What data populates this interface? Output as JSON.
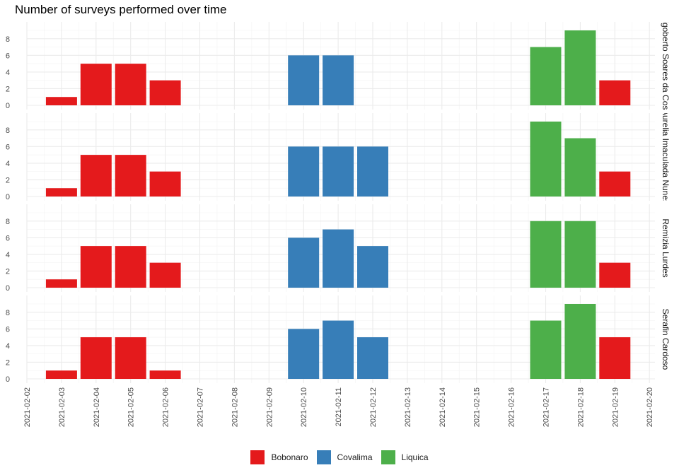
{
  "chart_data": {
    "type": "bar",
    "title": "Number of surveys performed over time",
    "x_tick_labels": [
      "2021-02-02",
      "2021-02-03",
      "2021-02-04",
      "2021-02-05",
      "2021-02-06",
      "2021-02-07",
      "2021-02-08",
      "2021-02-09",
      "2021-02-10",
      "2021-02-11",
      "2021-02-12",
      "2021-02-13",
      "2021-02-14",
      "2021-02-15",
      "2021-02-16",
      "2021-02-17",
      "2021-02-18",
      "2021-02-19",
      "2021-02-20"
    ],
    "ylim": [
      0,
      9
    ],
    "y_ticks": [
      0,
      2,
      4,
      6,
      8
    ],
    "legend": {
      "position": "bottom",
      "entries": [
        {
          "name": "Bobonaro",
          "color": "#e41a1c"
        },
        {
          "name": "Covalima",
          "color": "#377eb8"
        },
        {
          "name": "Liquica",
          "color": "#4daf4a"
        }
      ]
    },
    "panels": [
      {
        "strip": "Rigoberto Soares da Costa",
        "bars": [
          {
            "date": "2021-02-03",
            "value": 1,
            "group": "Bobonaro"
          },
          {
            "date": "2021-02-04",
            "value": 5,
            "group": "Bobonaro"
          },
          {
            "date": "2021-02-05",
            "value": 5,
            "group": "Bobonaro"
          },
          {
            "date": "2021-02-06",
            "value": 3,
            "group": "Bobonaro"
          },
          {
            "date": "2021-02-10",
            "value": 6,
            "group": "Covalima"
          },
          {
            "date": "2021-02-11",
            "value": 6,
            "group": "Covalima"
          },
          {
            "date": "2021-02-17",
            "value": 7,
            "group": "Liquica"
          },
          {
            "date": "2021-02-18",
            "value": 9,
            "group": "Liquica"
          },
          {
            "date": "2021-02-19",
            "value": 3,
            "group": "Bobonaro"
          }
        ]
      },
      {
        "strip": "Aurelia Imaculada Nunes",
        "bars": [
          {
            "date": "2021-02-03",
            "value": 1,
            "group": "Bobonaro"
          },
          {
            "date": "2021-02-04",
            "value": 5,
            "group": "Bobonaro"
          },
          {
            "date": "2021-02-05",
            "value": 5,
            "group": "Bobonaro"
          },
          {
            "date": "2021-02-06",
            "value": 3,
            "group": "Bobonaro"
          },
          {
            "date": "2021-02-10",
            "value": 6,
            "group": "Covalima"
          },
          {
            "date": "2021-02-11",
            "value": 6,
            "group": "Covalima"
          },
          {
            "date": "2021-02-12",
            "value": 6,
            "group": "Covalima"
          },
          {
            "date": "2021-02-17",
            "value": 9,
            "group": "Liquica"
          },
          {
            "date": "2021-02-18",
            "value": 7,
            "group": "Liquica"
          },
          {
            "date": "2021-02-19",
            "value": 3,
            "group": "Bobonaro"
          }
        ]
      },
      {
        "strip": "Remizia Lurdes",
        "bars": [
          {
            "date": "2021-02-03",
            "value": 1,
            "group": "Bobonaro"
          },
          {
            "date": "2021-02-04",
            "value": 5,
            "group": "Bobonaro"
          },
          {
            "date": "2021-02-05",
            "value": 5,
            "group": "Bobonaro"
          },
          {
            "date": "2021-02-06",
            "value": 3,
            "group": "Bobonaro"
          },
          {
            "date": "2021-02-10",
            "value": 6,
            "group": "Covalima"
          },
          {
            "date": "2021-02-11",
            "value": 7,
            "group": "Covalima"
          },
          {
            "date": "2021-02-12",
            "value": 5,
            "group": "Covalima"
          },
          {
            "date": "2021-02-17",
            "value": 8,
            "group": "Liquica"
          },
          {
            "date": "2021-02-18",
            "value": 8,
            "group": "Liquica"
          },
          {
            "date": "2021-02-19",
            "value": 3,
            "group": "Bobonaro"
          }
        ]
      },
      {
        "strip": "Serafin Cardoso",
        "bars": [
          {
            "date": "2021-02-03",
            "value": 1,
            "group": "Bobonaro"
          },
          {
            "date": "2021-02-04",
            "value": 5,
            "group": "Bobonaro"
          },
          {
            "date": "2021-02-05",
            "value": 5,
            "group": "Bobonaro"
          },
          {
            "date": "2021-02-06",
            "value": 1,
            "group": "Bobonaro"
          },
          {
            "date": "2021-02-10",
            "value": 6,
            "group": "Covalima"
          },
          {
            "date": "2021-02-11",
            "value": 7,
            "group": "Covalima"
          },
          {
            "date": "2021-02-12",
            "value": 5,
            "group": "Covalima"
          },
          {
            "date": "2021-02-17",
            "value": 7,
            "group": "Liquica"
          },
          {
            "date": "2021-02-18",
            "value": 9,
            "group": "Liquica"
          },
          {
            "date": "2021-02-19",
            "value": 5,
            "group": "Bobonaro"
          }
        ]
      }
    ]
  }
}
